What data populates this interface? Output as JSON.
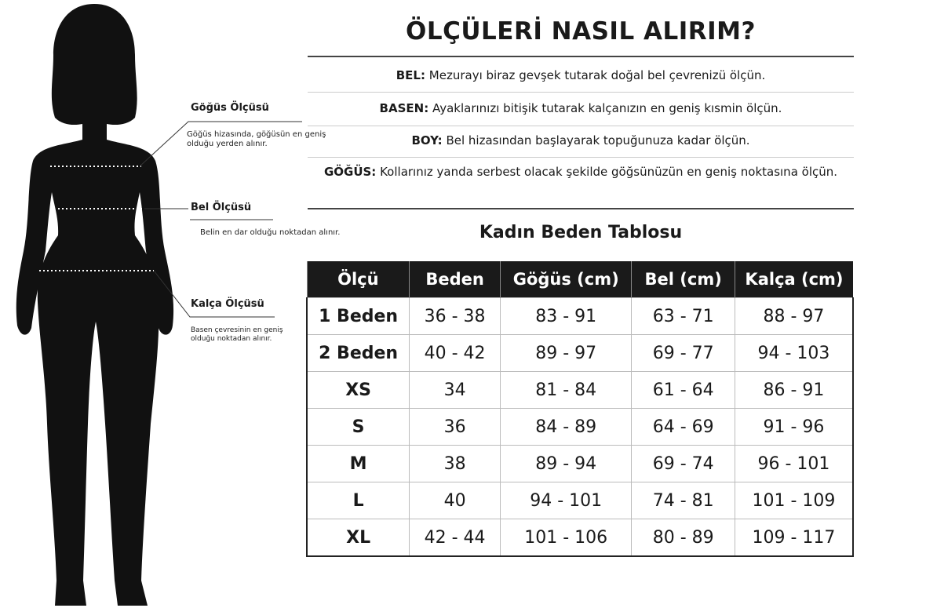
{
  "figure_labels": [
    {
      "title": "Göğüs Ölçüsü",
      "desc": "Göğüs hizasında, göğüsün en geniş olduğu yerden alınır."
    },
    {
      "title": "Bel Ölçüsü",
      "desc": "Belin en dar olduğu noktadan alınır."
    },
    {
      "title": "Kalça Ölçüsü",
      "desc": "Basen çevresinin en geniş olduğu noktadan alınır."
    }
  ],
  "title": "ÖLÇÜLERİ NASIL ALIRIM?",
  "instructions": [
    {
      "key": "BEL:",
      "text": "Mezurayı biraz gevşek tutarak doğal bel çevrenizü ölçün."
    },
    {
      "key": "BASEN:",
      "text": "Ayaklarınızı bitişik tutarak kalçanızın en geniş kısmin ölçün."
    },
    {
      "key": "BOY:",
      "text": "Bel hizasından başlayarak topuğunuza kadar ölçün."
    },
    {
      "key": "GÖĞÜS:",
      "text": "Kollarınız  yanda serbest olacak şekilde göğsünüzün en geniş noktasına ölçün."
    }
  ],
  "table_title": "Kadın Beden Tablosu",
  "table": {
    "headers": [
      "Ölçü",
      "Beden",
      "Göğüs (cm)",
      "Bel (cm)",
      "Kalça (cm)"
    ],
    "rows": [
      [
        "1 Beden",
        "36 - 38",
        "83 - 91",
        "63 - 71",
        "88 - 97"
      ],
      [
        "2 Beden",
        "40 - 42",
        "89 - 97",
        "69 - 77",
        "94 - 103"
      ],
      [
        "XS",
        "34",
        "81 - 84",
        "61 - 64",
        "86 - 91"
      ],
      [
        "S",
        "36",
        "84 - 89",
        "64 - 69",
        "91 - 96"
      ],
      [
        "M",
        "38",
        "89 - 94",
        "69 - 74",
        "96 - 101"
      ],
      [
        "L",
        "40",
        "94 - 101",
        "74 - 81",
        "101 - 109"
      ],
      [
        "XL",
        "42 - 44",
        "101 - 106",
        "80 - 89",
        "109 - 117"
      ]
    ]
  }
}
